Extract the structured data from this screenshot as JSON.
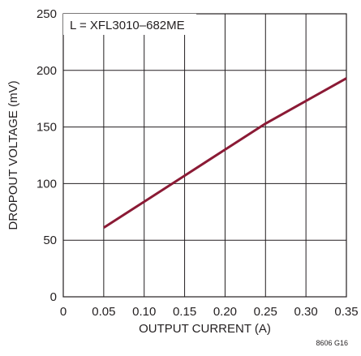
{
  "chart_data": {
    "type": "line",
    "annotation": "L = XFL3010–682ME",
    "xlabel": "OUTPUT CURRENT (A)",
    "ylabel": "DROPOUT VOLTAGE (mV)",
    "figure_id": "8606 G16",
    "xlim": [
      0,
      0.35
    ],
    "ylim": [
      0,
      250
    ],
    "x_ticks": [
      "0",
      "0.05",
      "0.10",
      "0.15",
      "0.20",
      "0.25",
      "0.30",
      "0.35"
    ],
    "y_ticks": [
      "0",
      "50",
      "100",
      "150",
      "200",
      "250"
    ],
    "grid": true,
    "series": [
      {
        "color": "#8b1a35",
        "x": [
          0.05,
          0.1,
          0.15,
          0.2,
          0.25,
          0.3,
          0.35
        ],
        "y": [
          61,
          84,
          107,
          130,
          153,
          173,
          193
        ]
      }
    ]
  }
}
